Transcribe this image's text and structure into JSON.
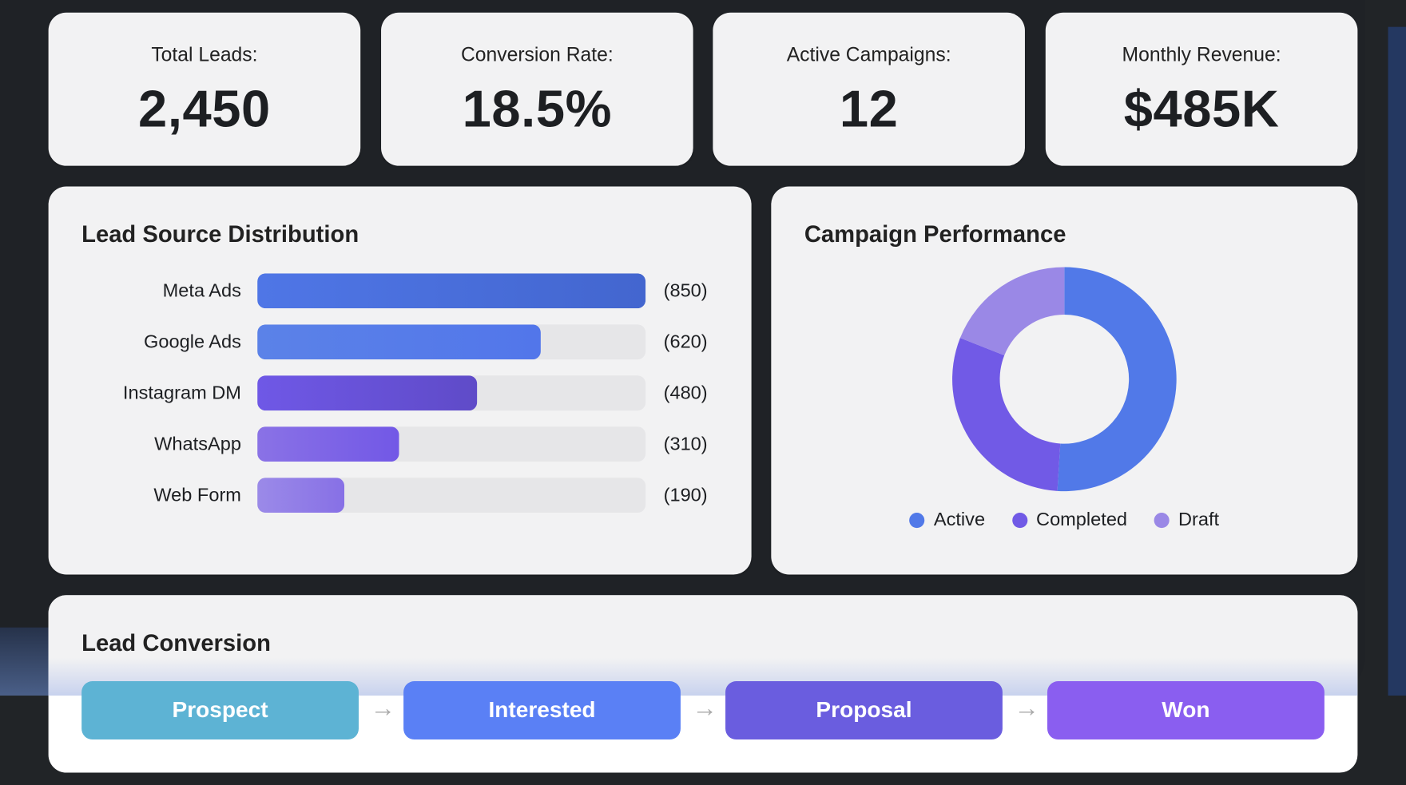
{
  "stats": [
    {
      "label": "Total Leads:",
      "value": "2,450"
    },
    {
      "label": "Conversion Rate:",
      "value": "18.5%"
    },
    {
      "label": "Active Campaigns:",
      "value": "12"
    },
    {
      "label": "Monthly Revenue:",
      "value": "$485K"
    }
  ],
  "lead_source": {
    "title": "Lead Source Distribution",
    "chart_data": {
      "type": "bar",
      "categories": [
        "Meta Ads",
        "Google Ads",
        "Instagram DM",
        "WhatsApp",
        "Web Form"
      ],
      "values": [
        850,
        620,
        480,
        310,
        190
      ],
      "value_labels": [
        "(850)",
        "(620)",
        "(480)",
        "(310)",
        "(190)"
      ],
      "max": 850,
      "colors": [
        [
          "#4f76e6",
          "#4366cf"
        ],
        [
          "#5b82e8",
          "#5276ea"
        ],
        [
          "#6f58e6",
          "#5f4bc8"
        ],
        [
          "#8a72e6",
          "#7258e6"
        ],
        [
          "#9b8ae8",
          "#8770e6"
        ]
      ]
    }
  },
  "campaign": {
    "title": "Campaign Performance",
    "chart_data": {
      "type": "pie",
      "donut": true,
      "series": [
        {
          "name": "Active",
          "value": 51,
          "color": "#5179e8"
        },
        {
          "name": "Completed",
          "value": 30,
          "color": "#715ae6"
        },
        {
          "name": "Draft",
          "value": 19,
          "color": "#9a88e6"
        }
      ],
      "legend": "bottom"
    }
  },
  "funnel": {
    "title": "Lead Conversion",
    "stages": [
      {
        "label": "Prospect",
        "color": "#5db3d4"
      },
      {
        "label": "Interested",
        "color": "#5a80f5"
      },
      {
        "label": "Proposal",
        "color": "#6a5ddf"
      },
      {
        "label": "Won",
        "color": "#8a5ef0"
      }
    ],
    "arrow": "→"
  }
}
